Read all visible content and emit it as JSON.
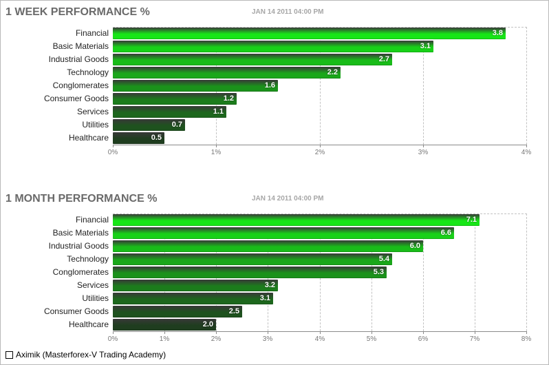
{
  "chart_data": [
    {
      "type": "bar",
      "orientation": "horizontal",
      "title": "1 WEEK PERFORMANCE %",
      "date": "JAN 14 2011 04:00 PM",
      "categories": [
        "Financial",
        "Basic Materials",
        "Industrial Goods",
        "Technology",
        "Conglomerates",
        "Consumer Goods",
        "Services",
        "Utilities",
        "Healthcare"
      ],
      "values": [
        3.8,
        3.1,
        2.7,
        2.2,
        1.6,
        1.2,
        1.1,
        0.7,
        0.5
      ],
      "value_labels": [
        "3.8",
        "3.1",
        "2.7",
        "2.2",
        "1.6",
        "1.2",
        "1.1",
        "0.7",
        "0.5"
      ],
      "xlim": [
        0,
        4
      ],
      "xticks": [
        0,
        1,
        2,
        3,
        4
      ],
      "xtick_labels": [
        "0%",
        "1%",
        "2%",
        "3%",
        "4%"
      ],
      "grid": true
    },
    {
      "type": "bar",
      "orientation": "horizontal",
      "title": "1 MONTH PERFORMANCE %",
      "date": "JAN 14 2011 04:00 PM",
      "categories": [
        "Financial",
        "Basic Materials",
        "Industrial Goods",
        "Technology",
        "Conglomerates",
        "Services",
        "Utilities",
        "Consumer Goods",
        "Healthcare"
      ],
      "values": [
        7.1,
        6.6,
        6.0,
        5.4,
        5.3,
        3.2,
        3.1,
        2.5,
        2.0
      ],
      "value_labels": [
        "7.1",
        "6.6",
        "6.0",
        "5.4",
        "5.3",
        "3.2",
        "3.1",
        "2.5",
        "2.0"
      ],
      "xlim": [
        0,
        8
      ],
      "xticks": [
        0,
        1,
        2,
        3,
        4,
        5,
        6,
        7,
        8
      ],
      "xtick_labels": [
        "0%",
        "1%",
        "2%",
        "3%",
        "4%",
        "5%",
        "6%",
        "7%",
        "8%"
      ],
      "grid": true
    }
  ],
  "colors": {
    "bar_high": "#17e617",
    "bar_low": "#1f3d1f",
    "title": "#6a6a6a",
    "date": "#a6a6a6"
  },
  "footer": {
    "text": "Aximik (Masterforex-V Trading Academy)"
  }
}
